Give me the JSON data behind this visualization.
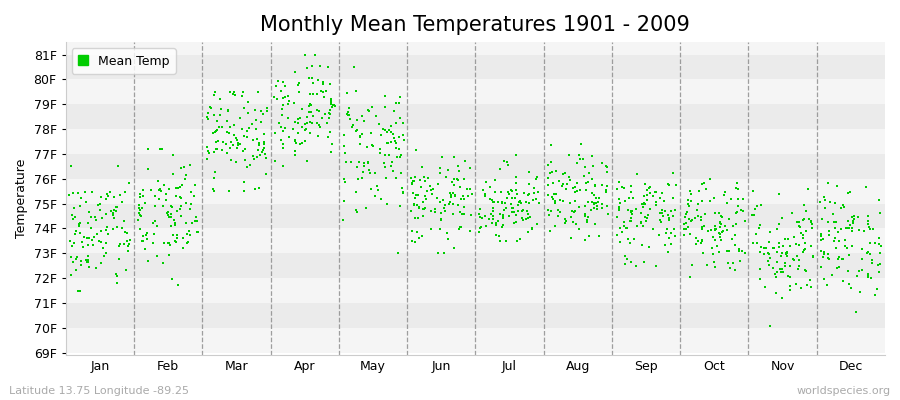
{
  "title": "Monthly Mean Temperatures 1901 - 2009",
  "ylabel": "Temperature",
  "xlabel": "",
  "legend_label": "Mean Temp",
  "dot_color": "#00cc00",
  "background_color": "#ffffff",
  "plot_bg_color": "#ffffff",
  "band_color_light": "#ebebeb",
  "band_color_white": "#f5f5f5",
  "ylim_low": 69,
  "ylim_high": 81.5,
  "yticks": [
    69,
    70,
    71,
    72,
    73,
    74,
    75,
    76,
    77,
    78,
    79,
    80,
    81
  ],
  "ytick_labels": [
    "69F",
    "70F",
    "71F",
    "72F",
    "73F",
    "74F",
    "75F",
    "76F",
    "77F",
    "78F",
    "79F",
    "80F",
    "81F"
  ],
  "months": [
    "Jan",
    "Feb",
    "Mar",
    "Apr",
    "May",
    "Jun",
    "Jul",
    "Aug",
    "Sep",
    "Oct",
    "Nov",
    "Dec"
  ],
  "month_means": [
    73.8,
    74.5,
    77.8,
    78.8,
    77.2,
    75.0,
    75.0,
    75.2,
    74.5,
    74.2,
    73.2,
    73.5
  ],
  "month_stds": [
    1.2,
    1.3,
    1.0,
    1.0,
    1.4,
    0.9,
    0.8,
    0.85,
    0.95,
    1.0,
    1.1,
    1.1
  ],
  "month_mins": [
    71.5,
    71.0,
    75.5,
    76.5,
    73.0,
    73.0,
    73.5,
    73.5,
    72.5,
    71.5,
    69.5,
    69.5
  ],
  "month_maxs": [
    76.5,
    77.2,
    79.5,
    81.0,
    81.5,
    77.5,
    77.0,
    78.5,
    77.5,
    76.5,
    77.0,
    77.5
  ],
  "n_years": 109,
  "footer_left": "Latitude 13.75 Longitude -89.25",
  "footer_right": "worldspecies.org",
  "title_fontsize": 15,
  "axis_label_fontsize": 9,
  "tick_fontsize": 9,
  "footer_fontsize": 8,
  "marker_size": 4,
  "dpi": 100,
  "fig_width": 9.0,
  "fig_height": 4.0
}
